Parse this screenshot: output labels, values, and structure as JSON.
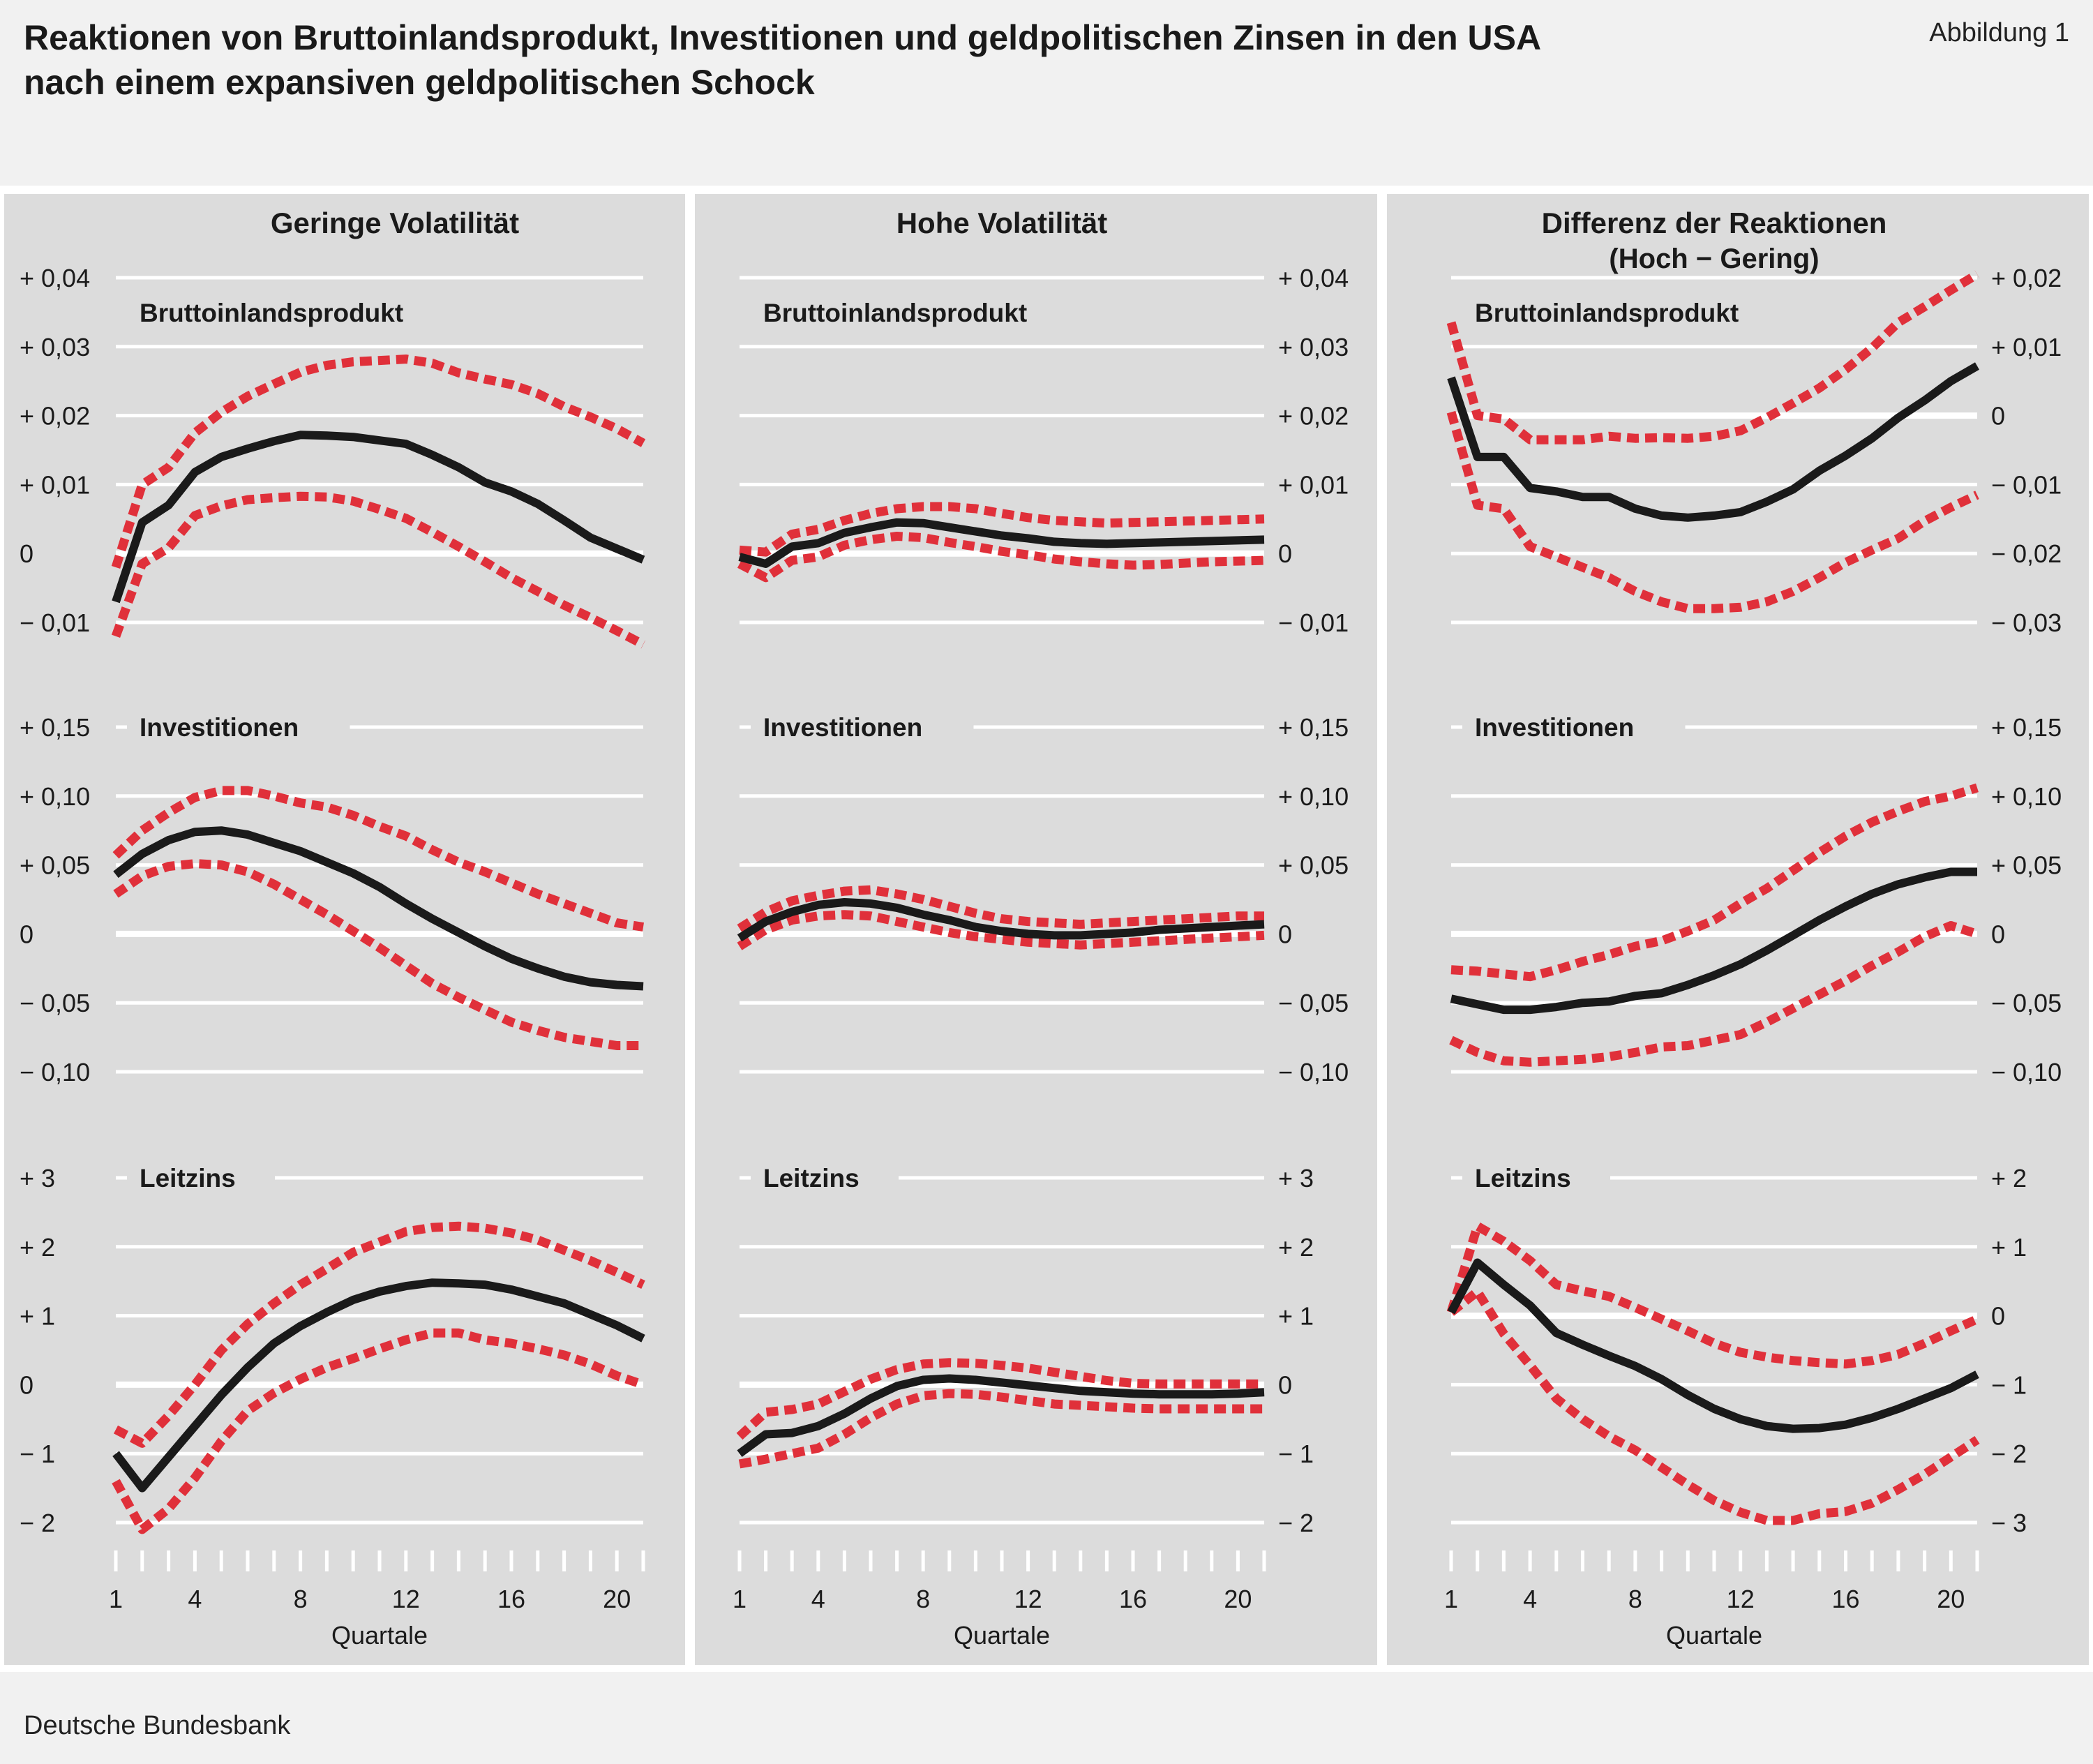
{
  "title_line1": "Reaktionen von Bruttoinlandsprodukt, Investitionen und geldpolitischen Zinsen in den USA",
  "title_line2": "nach einem expansiven geldpolitischen Schock",
  "figure_label": "Abbildung 1",
  "source": "Deutsche Bundesbank",
  "colors": {
    "panel_bg": "#dcdcdc",
    "page_bg": "#f1f1f1",
    "median": "#1a1a1a",
    "band": "#e0303a",
    "grid": "#ffffff"
  },
  "chart_data": {
    "type": "line",
    "xlabel": "Quartale",
    "x_ticks": [
      1,
      4,
      8,
      12,
      16,
      20
    ],
    "x": [
      1,
      2,
      3,
      4,
      5,
      6,
      7,
      8,
      9,
      10,
      11,
      12,
      13,
      14,
      15,
      16,
      17,
      18,
      19,
      20,
      21
    ],
    "xlim": [
      1,
      21
    ],
    "columns": [
      {
        "title": "Geringe Volatilität",
        "axis_side": "left"
      },
      {
        "title": "Hohe Volatilität",
        "axis_side": "right"
      },
      {
        "title": "Differenz der Reaktionen",
        "title2": "(Hoch − Gering)",
        "axis_side": "right"
      }
    ],
    "rows": [
      {
        "label": "Bruttoinlandsprodukt"
      },
      {
        "label": "Investitionen"
      },
      {
        "label": "Leitzins"
      }
    ],
    "panels": [
      {
        "column": 0,
        "row": 0,
        "ylim": [
          -0.01,
          0.04
        ],
        "ticks": [
          0.04,
          0.03,
          0.02,
          0.01,
          0,
          -0.01
        ],
        "tick_labels": [
          "+ 0,04",
          "+ 0,03",
          "+ 0,02",
          "+ 0,01",
          "0",
          "− 0,01"
        ],
        "median": [
          -0.007,
          0.0045,
          0.007,
          0.0118,
          0.014,
          0.0152,
          0.0163,
          0.0172,
          0.0171,
          0.0169,
          0.0164,
          0.0159,
          0.0143,
          0.0125,
          0.0103,
          0.009,
          0.0072,
          0.0048,
          0.0023,
          0.0007,
          -0.0009
        ],
        "upper": [
          -0.002,
          0.01,
          0.0125,
          0.0175,
          0.0205,
          0.0228,
          0.0246,
          0.0263,
          0.0273,
          0.0278,
          0.028,
          0.0282,
          0.0276,
          0.0262,
          0.0253,
          0.0245,
          0.0232,
          0.0213,
          0.0198,
          0.0181,
          0.016
        ],
        "lower": [
          -0.012,
          -0.0015,
          0.0008,
          0.0055,
          0.0069,
          0.0078,
          0.0081,
          0.0083,
          0.0082,
          0.0076,
          0.0064,
          0.0051,
          0.0031,
          0.001,
          -0.0012,
          -0.0035,
          -0.0055,
          -0.0075,
          -0.0093,
          -0.0112,
          -0.0132
        ]
      },
      {
        "column": 1,
        "row": 0,
        "ylim": [
          -0.01,
          0.04
        ],
        "ticks": [
          0.04,
          0.03,
          0.02,
          0.01,
          0,
          -0.01
        ],
        "tick_labels": [
          "+ 0,04",
          "+ 0,03",
          "+ 0,02",
          "+ 0,01",
          "0",
          "− 0,01"
        ],
        "median": [
          -0.0005,
          -0.0015,
          0.001,
          0.0015,
          0.003,
          0.0038,
          0.0045,
          0.0044,
          0.0038,
          0.0032,
          0.0026,
          0.0022,
          0.0017,
          0.0015,
          0.0014,
          0.0015,
          0.0016,
          0.0017,
          0.0018,
          0.0019,
          0.002
        ],
        "upper": [
          0.0005,
          0.0002,
          0.0028,
          0.0035,
          0.0048,
          0.0058,
          0.0065,
          0.0068,
          0.0068,
          0.0065,
          0.0058,
          0.0052,
          0.0048,
          0.0046,
          0.0044,
          0.0045,
          0.0046,
          0.0047,
          0.0048,
          0.0049,
          0.005
        ],
        "lower": [
          -0.0015,
          -0.0035,
          -0.001,
          -0.0005,
          0.0012,
          0.002,
          0.0025,
          0.0023,
          0.0016,
          0.001,
          0.0003,
          -0.0002,
          -0.0008,
          -0.0012,
          -0.0015,
          -0.0017,
          -0.0016,
          -0.0014,
          -0.0012,
          -0.0011,
          -0.001
        ]
      },
      {
        "column": 2,
        "row": 0,
        "ylim": [
          -0.03,
          0.02
        ],
        "ticks": [
          0.02,
          0.01,
          0,
          -0.01,
          -0.02,
          -0.03
        ],
        "tick_labels": [
          "+ 0,02",
          "+ 0,01",
          "0",
          "− 0,01",
          "− 0,02",
          "− 0,03"
        ],
        "median": [
          0.0055,
          -0.006,
          -0.006,
          -0.0105,
          -0.011,
          -0.0118,
          -0.0118,
          -0.0135,
          -0.0145,
          -0.0148,
          -0.0145,
          -0.014,
          -0.0125,
          -0.0107,
          -0.008,
          -0.0058,
          -0.0033,
          -0.0003,
          0.0022,
          0.005,
          0.0072
        ],
        "upper": [
          0.0135,
          0.0,
          -0.0005,
          -0.0035,
          -0.0035,
          -0.0035,
          -0.003,
          -0.0033,
          -0.0032,
          -0.0033,
          -0.003,
          -0.0022,
          -0.0003,
          0.0018,
          0.004,
          0.0067,
          0.0098,
          0.0135,
          0.0158,
          0.0182,
          0.0205
        ],
        "lower": [
          0.0005,
          -0.013,
          -0.0135,
          -0.019,
          -0.0205,
          -0.022,
          -0.0235,
          -0.0255,
          -0.027,
          -0.028,
          -0.028,
          -0.0278,
          -0.027,
          -0.0255,
          -0.0235,
          -0.0213,
          -0.0195,
          -0.0178,
          -0.0153,
          -0.0133,
          -0.0115
        ]
      },
      {
        "column": 0,
        "row": 1,
        "ylim": [
          -0.1,
          0.15
        ],
        "ticks": [
          0.15,
          0.1,
          0.05,
          0,
          -0.05,
          -0.1
        ],
        "tick_labels": [
          "+ 0,15",
          "+ 0,10",
          "+ 0,05",
          "0",
          "− 0,05",
          "− 0,10"
        ],
        "median": [
          0.043,
          0.058,
          0.068,
          0.074,
          0.075,
          0.072,
          0.066,
          0.06,
          0.052,
          0.044,
          0.034,
          0.022,
          0.011,
          0.001,
          -0.009,
          -0.018,
          -0.025,
          -0.031,
          -0.035,
          -0.037,
          -0.038
        ],
        "upper": [
          0.057,
          0.075,
          0.088,
          0.099,
          0.104,
          0.104,
          0.1,
          0.095,
          0.092,
          0.086,
          0.078,
          0.071,
          0.061,
          0.052,
          0.045,
          0.037,
          0.029,
          0.022,
          0.015,
          0.008,
          0.005
        ],
        "lower": [
          0.029,
          0.042,
          0.049,
          0.051,
          0.05,
          0.045,
          0.036,
          0.025,
          0.014,
          0.002,
          -0.01,
          -0.023,
          -0.036,
          -0.046,
          -0.055,
          -0.064,
          -0.07,
          -0.075,
          -0.078,
          -0.081,
          -0.081
        ]
      },
      {
        "column": 1,
        "row": 1,
        "ylim": [
          -0.1,
          0.15
        ],
        "ticks": [
          0.15,
          0.1,
          0.05,
          0,
          -0.05,
          -0.1
        ],
        "tick_labels": [
          "+ 0,15",
          "+ 0,10",
          "+ 0,05",
          "0",
          "− 0,05",
          "− 0,10"
        ],
        "median": [
          -0.003,
          0.009,
          0.016,
          0.021,
          0.023,
          0.022,
          0.019,
          0.014,
          0.01,
          0.005,
          0.002,
          0.0,
          -0.001,
          -0.001,
          0.0,
          0.001,
          0.003,
          0.004,
          0.005,
          0.006,
          0.007
        ],
        "upper": [
          0.004,
          0.016,
          0.024,
          0.028,
          0.031,
          0.032,
          0.029,
          0.025,
          0.02,
          0.015,
          0.011,
          0.009,
          0.008,
          0.007,
          0.008,
          0.009,
          0.01,
          0.011,
          0.012,
          0.013,
          0.013
        ],
        "lower": [
          -0.009,
          0.003,
          0.01,
          0.013,
          0.014,
          0.013,
          0.009,
          0.005,
          0.001,
          -0.002,
          -0.004,
          -0.006,
          -0.007,
          -0.008,
          -0.007,
          -0.006,
          -0.005,
          -0.004,
          -0.003,
          -0.002,
          -0.001
        ]
      },
      {
        "column": 2,
        "row": 1,
        "ylim": [
          -0.1,
          0.15
        ],
        "ticks": [
          0.15,
          0.1,
          0.05,
          0,
          -0.05,
          -0.1
        ],
        "tick_labels": [
          "+ 0,15",
          "+ 0,10",
          "+ 0,05",
          "0",
          "− 0,05",
          "− 0,10"
        ],
        "median": [
          -0.047,
          -0.051,
          -0.055,
          -0.055,
          -0.053,
          -0.05,
          -0.049,
          -0.045,
          -0.043,
          -0.037,
          -0.03,
          -0.022,
          -0.012,
          -0.001,
          0.01,
          0.02,
          0.029,
          0.036,
          0.041,
          0.045,
          0.045
        ],
        "upper": [
          -0.026,
          -0.027,
          -0.029,
          -0.031,
          -0.026,
          -0.02,
          -0.015,
          -0.009,
          -0.005,
          0.002,
          0.01,
          0.022,
          0.033,
          0.046,
          0.059,
          0.071,
          0.081,
          0.089,
          0.096,
          0.1,
          0.106
        ],
        "lower": [
          -0.077,
          -0.086,
          -0.092,
          -0.093,
          -0.092,
          -0.091,
          -0.089,
          -0.086,
          -0.082,
          -0.081,
          -0.077,
          -0.073,
          -0.064,
          -0.054,
          -0.044,
          -0.034,
          -0.023,
          -0.013,
          -0.002,
          0.006,
          0.0
        ]
      },
      {
        "column": 0,
        "row": 2,
        "ylim": [
          -2,
          3
        ],
        "ticks": [
          3,
          2,
          1,
          0,
          -1,
          -2
        ],
        "tick_labels": [
          "+ 3",
          "+ 2",
          "+ 1",
          "0",
          "− 1",
          "− 2"
        ],
        "median": [
          -1.0,
          -1.5,
          -1.05,
          -0.6,
          -0.15,
          0.25,
          0.6,
          0.85,
          1.05,
          1.23,
          1.35,
          1.43,
          1.48,
          1.47,
          1.45,
          1.38,
          1.28,
          1.18,
          1.02,
          0.86,
          0.67
        ],
        "upper": [
          -0.65,
          -0.85,
          -0.45,
          0.0,
          0.5,
          0.88,
          1.18,
          1.45,
          1.68,
          1.92,
          2.07,
          2.22,
          2.28,
          2.3,
          2.27,
          2.2,
          2.1,
          1.95,
          1.8,
          1.63,
          1.45
        ],
        "lower": [
          -1.4,
          -2.1,
          -1.8,
          -1.35,
          -0.82,
          -0.38,
          -0.12,
          0.08,
          0.25,
          0.38,
          0.52,
          0.65,
          0.75,
          0.75,
          0.65,
          0.6,
          0.52,
          0.43,
          0.3,
          0.13,
          0.0
        ]
      },
      {
        "column": 1,
        "row": 2,
        "ylim": [
          -2,
          3
        ],
        "ticks": [
          3,
          2,
          1,
          0,
          -1,
          -2
        ],
        "tick_labels": [
          "+ 3",
          "+ 2",
          "+ 1",
          "0",
          "− 1",
          "− 2"
        ],
        "median": [
          -1.0,
          -0.72,
          -0.7,
          -0.6,
          -0.42,
          -0.2,
          -0.02,
          0.07,
          0.09,
          0.07,
          0.03,
          -0.01,
          -0.05,
          -0.09,
          -0.11,
          -0.13,
          -0.14,
          -0.14,
          -0.14,
          -0.13,
          -0.11
        ],
        "upper": [
          -0.75,
          -0.4,
          -0.36,
          -0.28,
          -0.1,
          0.08,
          0.22,
          0.3,
          0.32,
          0.31,
          0.28,
          0.24,
          0.18,
          0.12,
          0.06,
          0.02,
          0.01,
          0.01,
          0.01,
          0.01,
          0.01
        ],
        "lower": [
          -1.15,
          -1.08,
          -1.0,
          -0.92,
          -0.72,
          -0.48,
          -0.28,
          -0.16,
          -0.13,
          -0.14,
          -0.18,
          -0.23,
          -0.28,
          -0.3,
          -0.32,
          -0.34,
          -0.35,
          -0.35,
          -0.35,
          -0.35,
          -0.35
        ]
      },
      {
        "column": 2,
        "row": 2,
        "ylim": [
          -3,
          2
        ],
        "ticks": [
          2,
          1,
          0,
          -1,
          -2,
          -3
        ],
        "tick_labels": [
          "+ 2",
          "+ 1",
          "0",
          "− 1",
          "− 2",
          "− 3"
        ],
        "median": [
          0.05,
          0.77,
          0.45,
          0.15,
          -0.25,
          -0.42,
          -0.58,
          -0.73,
          -0.92,
          -1.15,
          -1.35,
          -1.5,
          -1.6,
          -1.64,
          -1.63,
          -1.58,
          -1.48,
          -1.35,
          -1.2,
          -1.05,
          -0.85
        ],
        "upper": [
          0.05,
          1.3,
          1.08,
          0.8,
          0.45,
          0.36,
          0.28,
          0.12,
          -0.05,
          -0.22,
          -0.4,
          -0.53,
          -0.6,
          -0.65,
          -0.68,
          -0.7,
          -0.65,
          -0.56,
          -0.4,
          -0.22,
          -0.05
        ],
        "lower": [
          0.05,
          0.35,
          -0.26,
          -0.72,
          -1.2,
          -1.5,
          -1.75,
          -1.95,
          -2.2,
          -2.45,
          -2.68,
          -2.85,
          -2.97,
          -2.97,
          -2.87,
          -2.84,
          -2.72,
          -2.52,
          -2.3,
          -2.05,
          -1.8
        ]
      }
    ]
  }
}
